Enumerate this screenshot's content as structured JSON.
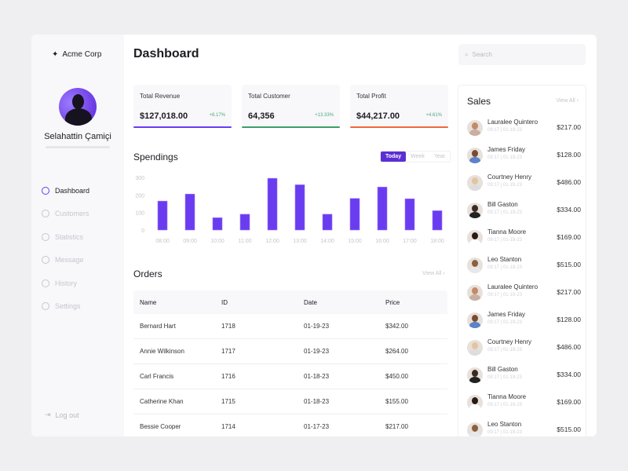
{
  "brand": "Acme Corp",
  "user": {
    "name": "Selahattin Çamiçi"
  },
  "nav": [
    {
      "label": "Dashboard",
      "icon": "gauge-icon",
      "active": true
    },
    {
      "label": "Customers",
      "icon": "users-icon"
    },
    {
      "label": "Statistics",
      "icon": "chart-icon"
    },
    {
      "label": "Message",
      "icon": "mail-icon"
    },
    {
      "label": "History",
      "icon": "history-icon"
    },
    {
      "label": "Settings",
      "icon": "gear-icon"
    }
  ],
  "logout": "Log out",
  "title": "Dashboard",
  "search": {
    "placeholder": "Search"
  },
  "cards": [
    {
      "label": "Total Revenue",
      "value": "$127,018.00",
      "change": "+8.17%",
      "color": "#6a3cf0"
    },
    {
      "label": "Total Customer",
      "value": "64,356",
      "change": "+13.33%",
      "color": "#3e9e6b"
    },
    {
      "label": "Total Profit",
      "value": "$44,217.00",
      "change": "+4.61%",
      "color": "#f0683c"
    }
  ],
  "spendings": {
    "title": "Spendings",
    "ranges": [
      "Today",
      "Week",
      "Year"
    ],
    "active": "Today"
  },
  "chart_data": {
    "type": "bar",
    "categories": [
      "08:00",
      "09:00",
      "10:00",
      "11:00",
      "12:00",
      "13:00",
      "14:00",
      "15:00",
      "16:00",
      "17:00",
      "18:00"
    ],
    "values": [
      165,
      205,
      70,
      90,
      295,
      258,
      90,
      180,
      245,
      178,
      110
    ],
    "yticks": [
      0,
      100,
      200,
      300
    ],
    "ylim": [
      0,
      300
    ],
    "color": "#6a3cf0",
    "grid": false
  },
  "orders": {
    "title": "Orders",
    "view_all": "View All",
    "columns": [
      "Name",
      "ID",
      "Date",
      "Price"
    ],
    "rows": [
      [
        "Bernard Hart",
        "1718",
        "01-19-23",
        "$342.00"
      ],
      [
        "Annie Wilkinson",
        "1717",
        "01-19-23",
        "$264.00"
      ],
      [
        "Carl Francis",
        "1716",
        "01-18-23",
        "$450.00"
      ],
      [
        "Catherine Khan",
        "1715",
        "01-18-23",
        "$155.00"
      ],
      [
        "Bessie Cooper",
        "1714",
        "01-17-23",
        "$217.00"
      ]
    ]
  },
  "sales": {
    "title": "Sales",
    "view_all": "View All",
    "items": [
      {
        "name": "Lauralee Quintero",
        "date": "09:17 | 01-19-23",
        "price": "$217.00"
      },
      {
        "name": "James Friday",
        "date": "09:17 | 01-19-23",
        "price": "$128.00"
      },
      {
        "name": "Courtney Henry",
        "date": "09:17 | 01-19-23",
        "price": "$486.00"
      },
      {
        "name": "Bill Gaston",
        "date": "09:17 | 01-19-23",
        "price": "$334.00"
      },
      {
        "name": "Tianna Moore",
        "date": "09:17 | 01-19-23",
        "price": "$169.00"
      },
      {
        "name": "Leo Stanton",
        "date": "09:17 | 01-19-23",
        "price": "$515.00"
      },
      {
        "name": "Lauralee Quintero",
        "date": "09:17 | 01-19-23",
        "price": "$217.00"
      },
      {
        "name": "James Friday",
        "date": "09:17 | 01-19-23",
        "price": "$128.00"
      },
      {
        "name": "Courtney Henry",
        "date": "09:17 | 01-19-23",
        "price": "$486.00"
      },
      {
        "name": "Bill Gaston",
        "date": "09:17 | 01-19-23",
        "price": "$334.00"
      },
      {
        "name": "Tianna Moore",
        "date": "09:17 | 01-19-23",
        "price": "$169.00"
      },
      {
        "name": "Leo Stanton",
        "date": "09:17 | 01-19-23",
        "price": "$515.00"
      }
    ]
  }
}
